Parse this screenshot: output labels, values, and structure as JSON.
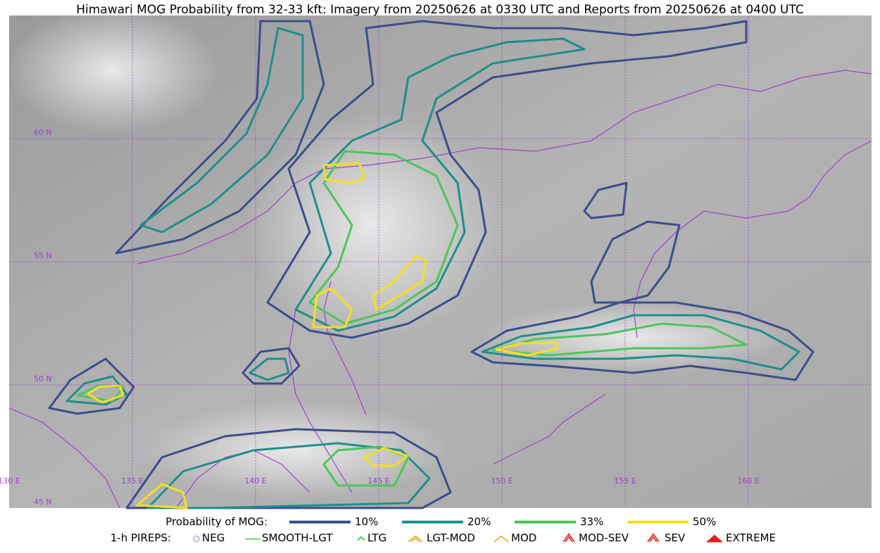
{
  "header": {
    "title": "Himawari MOG Probability from 32-33 kft: Imagery from 20250626 at 0330 UTC and Reports from 20250626 at 0400 UTC"
  },
  "map": {
    "lon_labels": [
      "130 E",
      "135 E",
      "140 E",
      "145 E",
      "150 E",
      "155 E",
      "160 E"
    ],
    "lat_labels": [
      "60 N",
      "55 N",
      "50 N",
      "45 N"
    ]
  },
  "legend": {
    "title": "Probability of MOG:",
    "items": [
      {
        "label": "10%",
        "color": "#3a4e8c"
      },
      {
        "label": "20%",
        "color": "#1f8f8a"
      },
      {
        "label": "33%",
        "color": "#4cc75a"
      },
      {
        "label": "50%",
        "color": "#f5e020"
      }
    ]
  },
  "pireps": {
    "title": "1-h PIREPS:",
    "items": [
      "NEG",
      "SMOOTH-LGT",
      "LTG",
      "LGT-MOD",
      "MOD",
      "MOD-SEV",
      "SEV",
      "EXTREME"
    ]
  }
}
